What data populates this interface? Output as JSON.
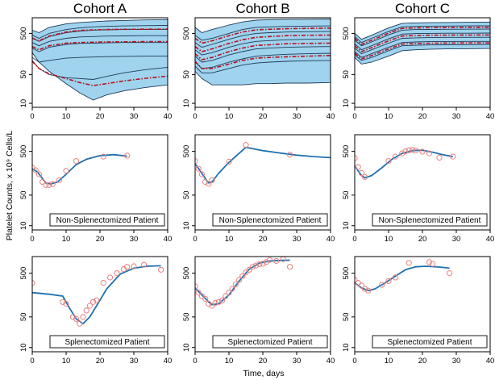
{
  "figure": {
    "ylabel": "Platelet Counts, x 10⁹ Cells/L",
    "xlabel": "Time, days"
  },
  "chart_data": [
    {
      "type": "line",
      "title": "Cohort A",
      "panel": "band",
      "xlim": [
        0,
        40
      ],
      "yscale": "log",
      "yticks": [
        10,
        50,
        500
      ],
      "xticks": [
        0,
        10,
        20,
        30,
        40
      ],
      "color_band": "#9fd3ee",
      "color_line": "#1f3b5a",
      "color_median": "#b5121b",
      "x": [
        0,
        2,
        5,
        10,
        14,
        18,
        22,
        27,
        33,
        40
      ],
      "band_upper": [
        600,
        520,
        700,
        850,
        920,
        960,
        1000,
        1030,
        1060,
        1080
      ],
      "band_lower": [
        170,
        100,
        60,
        30,
        18,
        12,
        16,
        20,
        24,
        28
      ],
      "percentiles": [
        [
          450,
          380,
          500,
          620,
          680,
          720,
          740,
          760,
          770,
          780
        ],
        [
          380,
          320,
          420,
          520,
          570,
          600,
          610,
          620,
          625,
          630
        ],
        [
          300,
          250,
          320,
          380,
          410,
          420,
          430,
          435,
          440,
          440
        ],
        [
          220,
          180,
          230,
          270,
          285,
          290,
          295,
          300,
          300,
          300
        ],
        [
          130,
          100,
          110,
          125,
          130,
          133,
          136,
          138,
          140,
          140
        ],
        [
          110,
          70,
          50,
          42,
          40,
          38,
          45,
          55,
          65,
          75
        ]
      ],
      "medians": [
        [
          385,
          330,
          430,
          540,
          590,
          610,
          620,
          630,
          632,
          635
        ],
        [
          240,
          200,
          250,
          290,
          300,
          305,
          310,
          312,
          315,
          315
        ],
        [
          105,
          70,
          52,
          40,
          32,
          27,
          30,
          35,
          40,
          46
        ]
      ]
    },
    {
      "type": "line",
      "title": "Cohort B",
      "panel": "band",
      "xlim": [
        0,
        40
      ],
      "yscale": "log",
      "yticks": [
        10,
        50,
        500
      ],
      "xticks": [
        0,
        10,
        20,
        30,
        40
      ],
      "color_band": "#9fd3ee",
      "color_line": "#1f3b5a",
      "color_median": "#b5121b",
      "x": [
        0,
        2,
        5,
        10,
        14,
        18,
        22,
        27,
        33,
        40
      ],
      "band_upper": [
        700,
        520,
        620,
        800,
        950,
        1050,
        1080,
        1090,
        1100,
        1110
      ],
      "band_lower": [
        60,
        40,
        28,
        28,
        28,
        30,
        30,
        31,
        31,
        32
      ],
      "percentiles": [
        [
          450,
          340,
          380,
          500,
          620,
          700,
          720,
          740,
          750,
          760
        ],
        [
          300,
          230,
          270,
          360,
          440,
          500,
          520,
          540,
          550,
          560
        ],
        [
          200,
          150,
          170,
          230,
          280,
          320,
          335,
          350,
          360,
          365
        ],
        [
          140,
          100,
          110,
          150,
          180,
          210,
          220,
          230,
          235,
          240
        ],
        [
          100,
          70,
          75,
          100,
          120,
          140,
          148,
          155,
          160,
          165
        ],
        [
          80,
          55,
          55,
          70,
          85,
          95,
          100,
          105,
          108,
          110
        ]
      ],
      "medians": [
        [
          380,
          290,
          330,
          440,
          540,
          610,
          630,
          650,
          660,
          670
        ],
        [
          240,
          180,
          210,
          285,
          350,
          400,
          420,
          440,
          450,
          455
        ],
        [
          160,
          115,
          130,
          180,
          220,
          255,
          265,
          280,
          285,
          290
        ],
        [
          105,
          70,
          70,
          90,
          110,
          125,
          130,
          135,
          140,
          145
        ]
      ]
    },
    {
      "type": "line",
      "title": "Cohort C",
      "panel": "band",
      "xlim": [
        0,
        40
      ],
      "yscale": "log",
      "yticks": [
        10,
        50,
        500
      ],
      "xticks": [
        0,
        10,
        20,
        30,
        40
      ],
      "color_band": "#9fd3ee",
      "color_line": "#1f3b5a",
      "color_median": "#b5121b",
      "x": [
        0,
        2,
        5,
        10,
        14,
        18,
        22,
        27,
        33,
        40
      ],
      "band_upper": [
        500,
        360,
        450,
        680,
        880,
        900,
        910,
        920,
        930,
        940
      ],
      "band_lower": [
        130,
        90,
        100,
        140,
        190,
        200,
        205,
        210,
        212,
        215
      ],
      "percentiles": [
        [
          420,
          300,
          380,
          560,
          720,
          740,
          750,
          755,
          760,
          765
        ],
        [
          340,
          250,
          310,
          460,
          600,
          620,
          625,
          630,
          632,
          635
        ],
        [
          280,
          200,
          250,
          370,
          480,
          495,
          500,
          505,
          505,
          508
        ],
        [
          220,
          160,
          200,
          290,
          380,
          390,
          395,
          400,
          400,
          402
        ],
        [
          180,
          130,
          160,
          230,
          300,
          310,
          315,
          318,
          320,
          320
        ],
        [
          150,
          110,
          130,
          190,
          250,
          258,
          262,
          265,
          266,
          268
        ]
      ],
      "medians": [
        [
          380,
          270,
          340,
          510,
          660,
          680,
          690,
          695,
          700,
          702
        ],
        [
          250,
          180,
          225,
          330,
          430,
          445,
          450,
          455,
          456,
          458
        ],
        [
          165,
          120,
          145,
          210,
          275,
          284,
          288,
          292,
          293,
          294
        ]
      ]
    },
    {
      "type": "scatter",
      "panel": "patient",
      "label": "Non-Splenectomized Patient",
      "xlim": [
        0,
        40
      ],
      "yscale": "log",
      "yticks": [
        10,
        50,
        500
      ],
      "xticks": [
        0,
        10,
        20,
        30,
        40
      ],
      "color_line": "#1f70b0",
      "color_point": "#e8807e",
      "fit": {
        "x": [
          0,
          1.5,
          3,
          4,
          5.5,
          7.5,
          10,
          13,
          16,
          20,
          24,
          28
        ],
        "y": [
          200,
          170,
          120,
          95,
          90,
          100,
          150,
          250,
          330,
          400,
          420,
          390
        ]
      },
      "obs": {
        "x": [
          0,
          1,
          2,
          3,
          4,
          5,
          6,
          8,
          10,
          13,
          21,
          28
        ],
        "y": [
          210,
          185,
          150,
          100,
          85,
          85,
          90,
          110,
          180,
          300,
          380,
          400
        ]
      }
    },
    {
      "type": "scatter",
      "panel": "patient",
      "label": "Non-Splenectomized Patient",
      "xlim": [
        0,
        40
      ],
      "yscale": "log",
      "yticks": [
        10,
        50,
        500
      ],
      "xticks": [
        0,
        10,
        20,
        30,
        40
      ],
      "color_line": "#1f70b0",
      "color_point": "#e8807e",
      "fit": {
        "x": [
          0,
          1.5,
          3,
          4,
          5,
          7,
          10,
          15,
          20,
          25,
          30,
          35,
          40
        ],
        "y": [
          260,
          180,
          120,
          95,
          100,
          160,
          280,
          620,
          520,
          460,
          410,
          380,
          360
        ]
      },
      "obs": {
        "x": [
          0,
          1,
          2,
          3,
          4,
          5,
          10,
          15,
          28
        ],
        "y": [
          300,
          200,
          150,
          100,
          90,
          110,
          290,
          700,
          420
        ]
      }
    },
    {
      "type": "scatter",
      "panel": "patient",
      "label": "Non-Splenectomized Patient",
      "xlim": [
        0,
        40
      ],
      "yscale": "log",
      "yticks": [
        10,
        50,
        500
      ],
      "xticks": [
        0,
        10,
        20,
        30,
        40
      ],
      "color_line": "#1f70b0",
      "color_point": "#e8807e",
      "fit": {
        "x": [
          0,
          1,
          2,
          3,
          5,
          8,
          11,
          14,
          17,
          20,
          23,
          26,
          29
        ],
        "y": [
          230,
          180,
          140,
          125,
          140,
          210,
          330,
          450,
          520,
          530,
          480,
          420,
          380
        ]
      },
      "obs": {
        "x": [
          0,
          1,
          2,
          3,
          10,
          12,
          14,
          15,
          16,
          17,
          18,
          20,
          22,
          25,
          29
        ],
        "y": [
          350,
          220,
          160,
          130,
          300,
          380,
          450,
          500,
          530,
          540,
          520,
          490,
          450,
          360,
          380
        ]
      }
    },
    {
      "type": "scatter",
      "panel": "patient",
      "label": "Splenectomized Patient",
      "xlim": [
        0,
        40
      ],
      "yscale": "log",
      "yticks": [
        10,
        50,
        500
      ],
      "xticks": [
        0,
        10,
        20,
        30,
        40
      ],
      "color_line": "#1f70b0",
      "color_point": "#e8807e",
      "fit": {
        "x": [
          0,
          5,
          9,
          11,
          13,
          15,
          17,
          19,
          22,
          26,
          30,
          34,
          38
        ],
        "y": [
          180,
          165,
          150,
          80,
          45,
          35,
          50,
          90,
          220,
          480,
          650,
          720,
          740
        ]
      },
      "obs": {
        "x": [
          0,
          9,
          10,
          12,
          13,
          14,
          15,
          16,
          17,
          18,
          19,
          21,
          23,
          25,
          27,
          28,
          30,
          33,
          38
        ],
        "y": [
          300,
          110,
          100,
          50,
          45,
          35,
          50,
          70,
          90,
          110,
          120,
          300,
          400,
          500,
          620,
          700,
          720,
          780,
          600
        ]
      }
    },
    {
      "type": "scatter",
      "panel": "patient",
      "label": "Splenectomized Patient",
      "xlim": [
        0,
        40
      ],
      "yscale": "log",
      "yticks": [
        10,
        50,
        500
      ],
      "xticks": [
        0,
        10,
        20,
        30,
        40
      ],
      "color_line": "#1f70b0",
      "color_point": "#e8807e",
      "fit": {
        "x": [
          0,
          2,
          4,
          5,
          7,
          10,
          13,
          16,
          19,
          22,
          25,
          28
        ],
        "y": [
          230,
          160,
          110,
          95,
          100,
          160,
          330,
          620,
          850,
          950,
          980,
          990
        ]
      },
      "obs": {
        "x": [
          0,
          1,
          2,
          3,
          4,
          5,
          6,
          7,
          8,
          9,
          10,
          11,
          12,
          13,
          14,
          15,
          16,
          17,
          18,
          19,
          20,
          21,
          22,
          24,
          26,
          28
        ],
        "y": [
          250,
          180,
          150,
          130,
          100,
          90,
          105,
          110,
          120,
          150,
          180,
          220,
          280,
          350,
          430,
          520,
          600,
          700,
          750,
          800,
          820,
          900,
          1000,
          950,
          1050,
          700
        ]
      }
    },
    {
      "type": "scatter",
      "panel": "patient",
      "label": "Splenectomized Patient",
      "xlim": [
        0,
        40
      ],
      "yscale": "log",
      "yticks": [
        10,
        50,
        500
      ],
      "xticks": [
        0,
        10,
        20,
        30,
        40
      ],
      "color_line": "#1f70b0",
      "color_point": "#e8807e",
      "fit": {
        "x": [
          0,
          2,
          4,
          6,
          9,
          12,
          15,
          18,
          21,
          25,
          28
        ],
        "y": [
          300,
          230,
          200,
          220,
          300,
          430,
          600,
          700,
          720,
          690,
          650
        ]
      },
      "obs": {
        "x": [
          0,
          1,
          2,
          3,
          4,
          8,
          10,
          12,
          16,
          22,
          23,
          28
        ],
        "y": [
          350,
          300,
          260,
          220,
          200,
          270,
          330,
          400,
          860,
          900,
          820,
          500
        ]
      }
    }
  ]
}
